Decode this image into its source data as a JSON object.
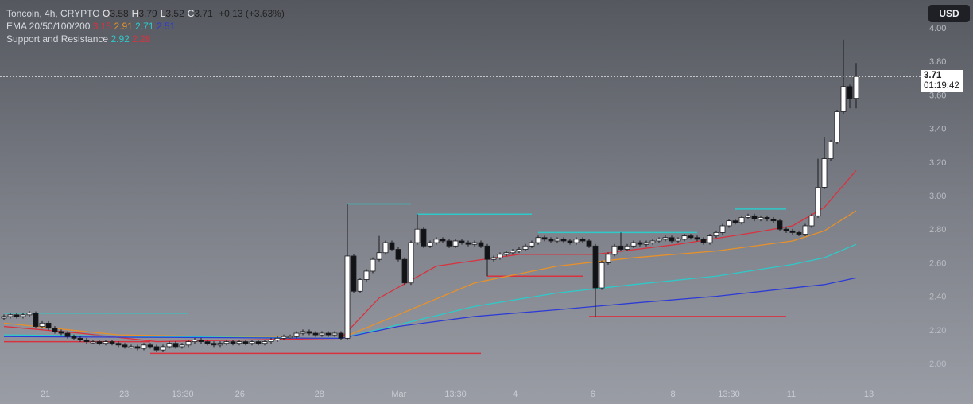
{
  "header": {
    "symbol": "Toncoin, 4h, CRYPTO",
    "ohlc": [
      {
        "label": "O",
        "value": "3.58"
      },
      {
        "label": "H",
        "value": "3.79"
      },
      {
        "label": "L",
        "value": "3.52"
      },
      {
        "label": "C",
        "value": "3.71"
      }
    ],
    "change": "+0.13 (+3.63%)",
    "ema": {
      "label": "EMA 20/50/100/200",
      "values": [
        {
          "value": "3.15",
          "color": "#d9323f"
        },
        {
          "value": "2.91",
          "color": "#e8912a"
        },
        {
          "value": "2.71",
          "color": "#2ec9c9"
        },
        {
          "value": "2.51",
          "color": "#2d3bd6"
        }
      ]
    },
    "sr": {
      "label": "Support and Resistance",
      "values": [
        {
          "value": "2.92",
          "color": "#2ec9c9"
        },
        {
          "value": "2.28",
          "color": "#d9323f"
        }
      ]
    }
  },
  "currency_button": "USD",
  "last_price": {
    "value": "3.71",
    "countdown": "01:19:42"
  },
  "chart_data": {
    "type": "candlestick",
    "ylim": [
      1.9,
      4.05
    ],
    "y_ticks": [
      "4.00",
      "3.80",
      "3.60",
      "3.40",
      "3.20",
      "3.00",
      "2.80",
      "2.60",
      "2.40",
      "2.20",
      "2.00"
    ],
    "x_ticks": [
      {
        "label": "21",
        "index": 6.5
      },
      {
        "label": "23",
        "index": 18.9
      },
      {
        "label": "13:30",
        "index": 28.1
      },
      {
        "label": "26",
        "index": 37.1
      },
      {
        "label": "28",
        "index": 49.6
      },
      {
        "label": "Mar",
        "index": 62.1
      },
      {
        "label": "13:30",
        "index": 71
      },
      {
        "label": "4",
        "index": 80.4
      },
      {
        "label": "6",
        "index": 92.6
      },
      {
        "label": "8",
        "index": 105.2
      },
      {
        "label": "13:30",
        "index": 114
      },
      {
        "label": "11",
        "index": 123.8
      },
      {
        "label": "13",
        "index": 136
      }
    ],
    "first_open": 2.27,
    "close": [
      2.28,
      2.29,
      2.28,
      2.29,
      2.3,
      2.22,
      2.24,
      2.21,
      2.19,
      2.18,
      2.16,
      2.15,
      2.14,
      2.13,
      2.13,
      2.12,
      2.13,
      2.12,
      2.11,
      2.1,
      2.1,
      2.09,
      2.11,
      2.1,
      2.08,
      2.1,
      2.12,
      2.1,
      2.11,
      2.13,
      2.14,
      2.13,
      2.12,
      2.11,
      2.12,
      2.13,
      2.12,
      2.13,
      2.12,
      2.13,
      2.12,
      2.13,
      2.14,
      2.15,
      2.16,
      2.16,
      2.18,
      2.19,
      2.18,
      2.17,
      2.18,
      2.17,
      2.18,
      2.15,
      2.64,
      2.43,
      2.5,
      2.55,
      2.62,
      2.66,
      2.72,
      2.68,
      2.62,
      2.48,
      2.72,
      2.8,
      2.7,
      2.72,
      2.74,
      2.73,
      2.7,
      2.73,
      2.72,
      2.71,
      2.72,
      2.7,
      2.62,
      2.63,
      2.65,
      2.66,
      2.67,
      2.68,
      2.7,
      2.72,
      2.75,
      2.74,
      2.73,
      2.74,
      2.73,
      2.72,
      2.74,
      2.73,
      2.7,
      2.45,
      2.6,
      2.65,
      2.7,
      2.68,
      2.7,
      2.72,
      2.71,
      2.72,
      2.73,
      2.74,
      2.75,
      2.73,
      2.74,
      2.76,
      2.75,
      2.74,
      2.72,
      2.76,
      2.78,
      2.82,
      2.85,
      2.84,
      2.87,
      2.88,
      2.86,
      2.87,
      2.86,
      2.85,
      2.8,
      2.79,
      2.78,
      2.77,
      2.82,
      2.88,
      3.05,
      3.22,
      3.32,
      3.5,
      3.65,
      3.58,
      3.71
    ],
    "wick_extremes": [
      {
        "index": 5,
        "high": 2.31
      },
      {
        "index": 54,
        "high": 2.95
      },
      {
        "index": 59,
        "high": 2.76
      },
      {
        "index": 65,
        "high": 2.89
      },
      {
        "index": 76,
        "low": 2.52
      },
      {
        "index": 93,
        "low": 2.28
      },
      {
        "index": 97,
        "high": 2.78
      },
      {
        "index": 128,
        "high": 3.22
      },
      {
        "index": 129,
        "high": 3.35
      },
      {
        "index": 132,
        "high": 3.93
      },
      {
        "index": 133,
        "low": 3.52
      },
      {
        "index": 134,
        "high": 3.79,
        "low": 3.52
      }
    ],
    "ema_series": [
      {
        "name": "EMA 20",
        "color": "#d9323f",
        "points": [
          [
            0,
            2.22
          ],
          [
            12,
            2.18
          ],
          [
            24,
            2.13
          ],
          [
            53,
            2.15
          ],
          [
            59,
            2.39
          ],
          [
            68,
            2.58
          ],
          [
            81,
            2.65
          ],
          [
            93,
            2.65
          ],
          [
            106,
            2.71
          ],
          [
            118,
            2.78
          ],
          [
            124,
            2.82
          ],
          [
            129,
            2.93
          ],
          [
            134,
            3.15
          ]
        ]
      },
      {
        "name": "EMA 50",
        "color": "#e8912a",
        "points": [
          [
            0,
            2.24
          ],
          [
            18,
            2.17
          ],
          [
            53,
            2.15
          ],
          [
            62,
            2.29
          ],
          [
            74,
            2.48
          ],
          [
            87,
            2.58
          ],
          [
            99,
            2.63
          ],
          [
            112,
            2.67
          ],
          [
            124,
            2.73
          ],
          [
            129,
            2.79
          ],
          [
            134,
            2.91
          ]
        ]
      },
      {
        "name": "EMA 100",
        "color": "#2ec9c9",
        "points": [
          [
            0,
            2.17
          ],
          [
            53,
            2.15
          ],
          [
            62,
            2.23
          ],
          [
            74,
            2.34
          ],
          [
            87,
            2.42
          ],
          [
            99,
            2.47
          ],
          [
            112,
            2.52
          ],
          [
            124,
            2.59
          ],
          [
            129,
            2.63
          ],
          [
            134,
            2.71
          ]
        ]
      },
      {
        "name": "EMA 200",
        "color": "#2d3bd6",
        "points": [
          [
            0,
            2.16
          ],
          [
            53,
            2.15
          ],
          [
            62,
            2.22
          ],
          [
            74,
            2.28
          ],
          [
            87,
            2.32
          ],
          [
            99,
            2.36
          ],
          [
            112,
            2.4
          ],
          [
            124,
            2.45
          ],
          [
            129,
            2.47
          ],
          [
            134,
            2.51
          ]
        ]
      }
    ],
    "levels": [
      {
        "type": "resistance",
        "color": "#2ec9c9",
        "price": 2.3,
        "from": 0,
        "to": 29
      },
      {
        "type": "resistance",
        "color": "#2ec9c9",
        "price": 2.95,
        "from": 54,
        "to": 64
      },
      {
        "type": "resistance",
        "color": "#2ec9c9",
        "price": 2.89,
        "from": 65,
        "to": 83
      },
      {
        "type": "resistance",
        "color": "#2ec9c9",
        "price": 2.78,
        "from": 84,
        "to": 109
      },
      {
        "type": "resistance",
        "color": "#2ec9c9",
        "price": 2.92,
        "from": 115,
        "to": 123
      },
      {
        "type": "support",
        "color": "#d9323f",
        "price": 2.13,
        "from": 0,
        "to": 23
      },
      {
        "type": "support",
        "color": "#d9323f",
        "price": 2.06,
        "from": 23,
        "to": 75
      },
      {
        "type": "support",
        "color": "#d9323f",
        "price": 2.52,
        "from": 76,
        "to": 91
      },
      {
        "type": "support",
        "color": "#d9323f",
        "price": 2.28,
        "from": 92,
        "to": 123
      }
    ],
    "last_price": 3.71
  }
}
